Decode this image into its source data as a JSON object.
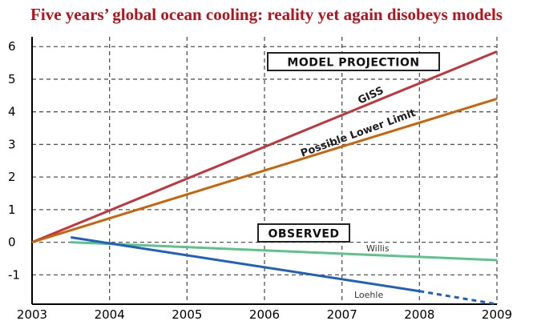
{
  "chart_data": {
    "type": "line",
    "title": "Five years’ global ocean cooling: reality yet again disobeys models",
    "x_ticks": [
      "2003",
      "2004",
      "2005",
      "2006",
      "2007",
      "2008",
      "2009"
    ],
    "y_ticks": [
      "6",
      "5",
      "4",
      "3",
      "2",
      "1",
      "0",
      "-1"
    ],
    "xlim": [
      2003,
      2009
    ],
    "ylim": [
      -1.9,
      6.3
    ],
    "grid": true,
    "annotations": {
      "model_projection": "MODEL PROJECTION",
      "observed": "OBSERVED"
    },
    "series": [
      {
        "name": "GISS",
        "color": "#c0363c",
        "points": [
          [
            2003,
            0
          ],
          [
            2009,
            5.85
          ]
        ]
      },
      {
        "name": "Possible Lower Limit",
        "color": "#c8650a",
        "points": [
          [
            2003,
            0
          ],
          [
            2009,
            4.4
          ]
        ]
      },
      {
        "name": "Willis",
        "color": "#5cc38a",
        "points": [
          [
            2003.5,
            0
          ],
          [
            2009,
            -0.55
          ]
        ]
      },
      {
        "name": "Loehle",
        "color": "#1f5fc0",
        "points": [
          [
            2003.5,
            0.15
          ],
          [
            2008,
            -1.5
          ]
        ],
        "dashed_extension": [
          [
            2008,
            -1.5
          ],
          [
            2009,
            -1.9
          ]
        ]
      }
    ]
  }
}
